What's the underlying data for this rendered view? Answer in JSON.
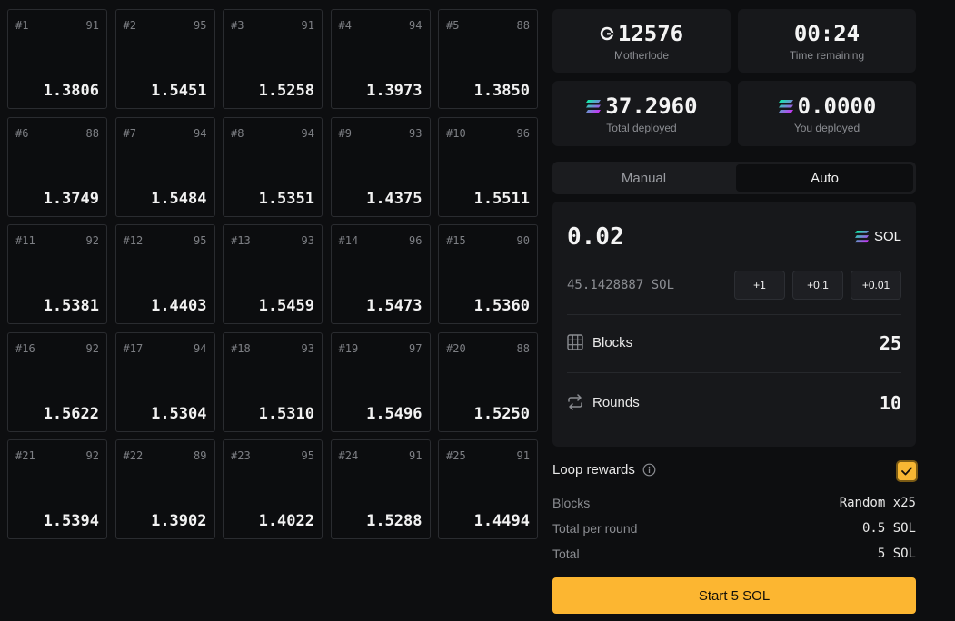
{
  "grid": [
    {
      "id": "#1",
      "count": "91",
      "value": "1.3806"
    },
    {
      "id": "#2",
      "count": "95",
      "value": "1.5451"
    },
    {
      "id": "#3",
      "count": "91",
      "value": "1.5258"
    },
    {
      "id": "#4",
      "count": "94",
      "value": "1.3973"
    },
    {
      "id": "#5",
      "count": "88",
      "value": "1.3850"
    },
    {
      "id": "#6",
      "count": "88",
      "value": "1.3749"
    },
    {
      "id": "#7",
      "count": "94",
      "value": "1.5484"
    },
    {
      "id": "#8",
      "count": "94",
      "value": "1.5351"
    },
    {
      "id": "#9",
      "count": "93",
      "value": "1.4375"
    },
    {
      "id": "#10",
      "count": "96",
      "value": "1.5511"
    },
    {
      "id": "#11",
      "count": "92",
      "value": "1.5381"
    },
    {
      "id": "#12",
      "count": "95",
      "value": "1.4403"
    },
    {
      "id": "#13",
      "count": "93",
      "value": "1.5459"
    },
    {
      "id": "#14",
      "count": "96",
      "value": "1.5473"
    },
    {
      "id": "#15",
      "count": "90",
      "value": "1.5360"
    },
    {
      "id": "#16",
      "count": "92",
      "value": "1.5622"
    },
    {
      "id": "#17",
      "count": "94",
      "value": "1.5304"
    },
    {
      "id": "#18",
      "count": "93",
      "value": "1.5310"
    },
    {
      "id": "#19",
      "count": "97",
      "value": "1.5496"
    },
    {
      "id": "#20",
      "count": "88",
      "value": "1.5250"
    },
    {
      "id": "#21",
      "count": "92",
      "value": "1.5394"
    },
    {
      "id": "#22",
      "count": "89",
      "value": "1.3902"
    },
    {
      "id": "#23",
      "count": "95",
      "value": "1.4022"
    },
    {
      "id": "#24",
      "count": "91",
      "value": "1.5288"
    },
    {
      "id": "#25",
      "count": "91",
      "value": "1.4494"
    }
  ],
  "stats": {
    "motherlode": {
      "value": "12576",
      "label": "Motherlode",
      "icon": "motherlode-icon"
    },
    "time": {
      "value": "00:24",
      "label": "Time remaining"
    },
    "total_deployed": {
      "value": "37.2960",
      "label": "Total deployed",
      "icon": "solana-icon"
    },
    "you_deployed": {
      "value": "0.0000",
      "label": "You deployed",
      "icon": "solana-icon"
    }
  },
  "tabs": [
    {
      "label": "Manual",
      "active": false
    },
    {
      "label": "Auto",
      "active": true
    }
  ],
  "form": {
    "amount": "0.02",
    "token": "SOL",
    "balance": "45.1428887 SOL",
    "quick": [
      "+1",
      "+0.1",
      "+0.01"
    ],
    "blocks_label": "Blocks",
    "blocks_value": "25",
    "rounds_label": "Rounds",
    "rounds_value": "10"
  },
  "loop": {
    "label": "Loop rewards",
    "checked": true
  },
  "summary": [
    {
      "label": "Blocks",
      "value": "Random x25"
    },
    {
      "label": "Total per round",
      "value": "0.5 SOL"
    },
    {
      "label": "Total",
      "value": "5 SOL"
    }
  ],
  "start_label": "Start 5 SOL",
  "colors": {
    "accent": "#fcb631",
    "bg": "#0d0e10",
    "panel": "#17181b",
    "solana_top": "#00ffa3",
    "solana_bottom": "#dc1fff"
  }
}
